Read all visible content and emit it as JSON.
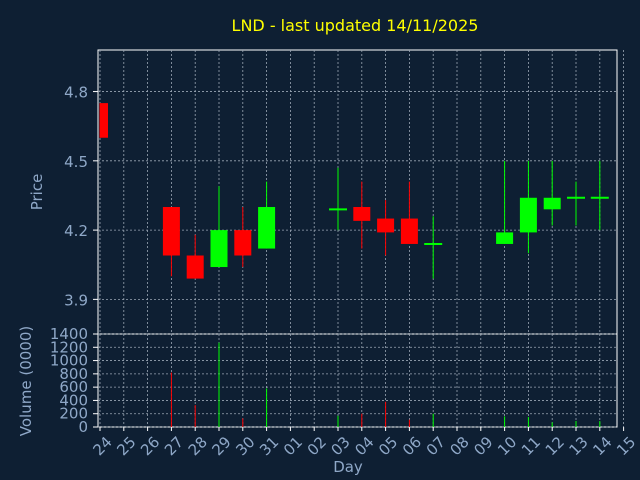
{
  "colors": {
    "background": "#0e1f33",
    "frame": "#ffffff",
    "grid": "#9aa6b4",
    "title": "#ffff00",
    "axis_text": "#8fa8c8",
    "up": "#00ff00",
    "down": "#ff0000",
    "doji": "#00ff00"
  },
  "chart_data": [
    {
      "type": "candlestick",
      "title": "LND - last updated 14/11/2025",
      "ylabel": "Price",
      "xlabel": "",
      "ylim": [
        3.75,
        4.98
      ],
      "yticks": [
        "3.9",
        "4.2",
        "4.5",
        "4.8"
      ],
      "grid": true,
      "categories": [
        "24",
        "25",
        "26",
        "27",
        "28",
        "29",
        "30",
        "31",
        "01",
        "02",
        "03",
        "04",
        "05",
        "06",
        "07",
        "08",
        "09",
        "10",
        "11",
        "12",
        "13",
        "14",
        "15"
      ],
      "candles": [
        {
          "day": "24",
          "open": 4.75,
          "high": 4.75,
          "low": 4.6,
          "close": 4.6
        },
        {
          "day": "27",
          "open": 4.3,
          "high": 4.3,
          "low": 4.0,
          "close": 4.09
        },
        {
          "day": "28",
          "open": 4.09,
          "high": 4.18,
          "low": 3.99,
          "close": 3.99
        },
        {
          "day": "29",
          "open": 4.04,
          "high": 4.39,
          "low": 4.04,
          "close": 4.2
        },
        {
          "day": "30",
          "open": 4.2,
          "high": 4.3,
          "low": 4.04,
          "close": 4.09
        },
        {
          "day": "31",
          "open": 4.12,
          "high": 4.41,
          "low": 4.12,
          "close": 4.3
        },
        {
          "day": "03",
          "open": 4.29,
          "high": 4.47,
          "low": 4.2,
          "close": 4.29
        },
        {
          "day": "04",
          "open": 4.3,
          "high": 4.41,
          "low": 4.12,
          "close": 4.24
        },
        {
          "day": "05",
          "open": 4.25,
          "high": 4.33,
          "low": 4.09,
          "close": 4.19
        },
        {
          "day": "06",
          "open": 4.25,
          "high": 4.41,
          "low": 4.14,
          "close": 4.14
        },
        {
          "day": "07",
          "open": 4.14,
          "high": 4.26,
          "low": 3.99,
          "close": 4.14
        },
        {
          "day": "10",
          "open": 4.14,
          "high": 4.5,
          "low": 4.14,
          "close": 4.19
        },
        {
          "day": "11",
          "open": 4.19,
          "high": 4.5,
          "low": 4.1,
          "close": 4.34
        },
        {
          "day": "12",
          "open": 4.29,
          "high": 4.5,
          "low": 4.22,
          "close": 4.34
        },
        {
          "day": "13",
          "open": 4.34,
          "high": 4.41,
          "low": 4.22,
          "close": 4.34
        },
        {
          "day": "14",
          "open": 4.34,
          "high": 4.5,
          "low": 4.2,
          "close": 4.34
        }
      ]
    },
    {
      "type": "bar",
      "title": "",
      "ylabel": "Volume (0000)",
      "xlabel": "Day",
      "ylim": [
        0,
        1400
      ],
      "yticks": [
        "0",
        "200",
        "400",
        "600",
        "800",
        "1000",
        "1200",
        "1400"
      ],
      "grid": true,
      "categories": [
        "24",
        "25",
        "26",
        "27",
        "28",
        "29",
        "30",
        "31",
        "01",
        "02",
        "03",
        "04",
        "05",
        "06",
        "07",
        "08",
        "09",
        "10",
        "11",
        "12",
        "13",
        "14",
        "15"
      ],
      "bars": [
        {
          "day": "27",
          "value": 820,
          "direction": "down"
        },
        {
          "day": "28",
          "value": 330,
          "direction": "down"
        },
        {
          "day": "29",
          "value": 1270,
          "direction": "up"
        },
        {
          "day": "30",
          "value": 130,
          "direction": "down"
        },
        {
          "day": "31",
          "value": 580,
          "direction": "up"
        },
        {
          "day": "03",
          "value": 170,
          "direction": "up"
        },
        {
          "day": "04",
          "value": 200,
          "direction": "down"
        },
        {
          "day": "05",
          "value": 380,
          "direction": "down"
        },
        {
          "day": "06",
          "value": 110,
          "direction": "down"
        },
        {
          "day": "07",
          "value": 200,
          "direction": "up"
        },
        {
          "day": "10",
          "value": 160,
          "direction": "up"
        },
        {
          "day": "11",
          "value": 150,
          "direction": "up"
        },
        {
          "day": "12",
          "value": 70,
          "direction": "up"
        },
        {
          "day": "13",
          "value": 90,
          "direction": "up"
        },
        {
          "day": "14",
          "value": 90,
          "direction": "up"
        }
      ]
    }
  ]
}
